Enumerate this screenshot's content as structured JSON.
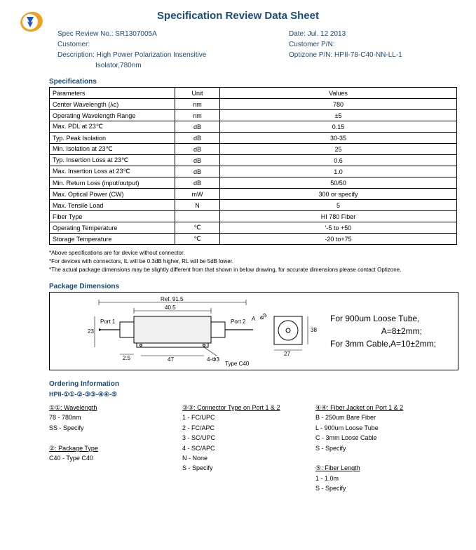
{
  "title": "Specification Review Data Sheet",
  "header": {
    "specReviewLabel": "Spec Review No.:",
    "specReviewNo": "SR1307005A",
    "dateLabel": "Date:",
    "date": "Jul. 12 2013",
    "customerLabel": "Customer:",
    "customer": "",
    "custPNLabel": "Customer P/N:",
    "custPN": "",
    "descLabel": "Description:",
    "desc1": "High Power Polarization Insensitive",
    "desc2": "Isolator,780nm",
    "optizonePNLabel": "Optizone P/N:",
    "optizonePN": "HPII-78-C40-NN-LL-1"
  },
  "specsHead": "Specifications",
  "specCols": {
    "param": "Parameters",
    "unit": "Unit",
    "values": "Values"
  },
  "specs": [
    {
      "p": "Center Wavelength (λc)",
      "u": "nm",
      "v": "780"
    },
    {
      "p": "Operating Wavelength Range",
      "u": "nm",
      "v": "±5"
    },
    {
      "p": "Max. PDL at 23℃",
      "u": "dB",
      "v": "0.15"
    },
    {
      "p": "Typ. Peak Isolation",
      "u": "dB",
      "v": "30-35"
    },
    {
      "p": "Min. Isolation at 23℃",
      "u": "dB",
      "v": "25"
    },
    {
      "p": "Typ. Insertion Loss at 23℃",
      "u": "dB",
      "v": "0.6"
    },
    {
      "p": "Max. Insertion Loss at 23℃",
      "u": "dB",
      "v": "1.0"
    },
    {
      "p": "Min. Return Loss (input/output)",
      "u": "dB",
      "v": "50/50"
    },
    {
      "p": "Max. Optical Power (CW)",
      "u": "mW",
      "v": "300 or specify"
    },
    {
      "p": "Max. Tensile Load",
      "u": "N",
      "v": "5"
    },
    {
      "p": "Fiber Type",
      "u": "",
      "v": "HI 780 Fiber"
    },
    {
      "p": "Operating Temperature",
      "u": "℃",
      "v": "'-5 to +50"
    },
    {
      "p": "Storage Temperature",
      "u": "℃",
      "v": "-20 to+75"
    }
  ],
  "notes": [
    "*Above specifications are for device without connector.",
    "*For devices with connectors, IL will be 0.3dB higher, RL will be 5dB lower.",
    "*The actual package dimensions may be slightly different from that shown in below drawing, for accurate dimensions please contact Optizone."
  ],
  "pkgHead": "Package Dimensions",
  "pkg": {
    "ref": "Ref. 91.5",
    "body": "40.5",
    "port1": "Port 1",
    "port2": "Port 2",
    "h": "23",
    "left25": "2.5",
    "mid47": "47",
    "hole": "4-Φ3",
    "end38": "38",
    "endDia": "Φ3",
    "end27": "27",
    "typeC40": "Type C40",
    "right1": "For 900um Loose Tube,",
    "right2": "A=8±2mm;",
    "right3": "For 3mm Cable,A=10±2mm;"
  },
  "ordering": {
    "head": "Ordering Information",
    "code": "HPII-①①-②-③③-④④-⑤",
    "cols": [
      {
        "title": "①①: Wavelength",
        "items": [
          "78 - 780nm",
          "SS - Specify",
          "",
          "②: Package Type",
          "C40 - Type C40"
        ]
      },
      {
        "title": "③③: Connector Type on Port 1 & 2",
        "items": [
          "1 - FC/UPC",
          "2 - FC/APC",
          "3 - SC/UPC",
          "4 - SC/APC",
          "N - None",
          "S - Specify"
        ]
      },
      {
        "title": "④④: Fiber Jacket on Port 1 & 2",
        "items": [
          "B - 250um Bare Fiber",
          "L - 900um Loose Tube",
          "C - 3mm Loose Cable",
          "S - Specify",
          "",
          "⑤: Fiber Length",
          "1 - 1.0m",
          "S - Specify"
        ]
      }
    ]
  },
  "styling": {
    "titleColor": "#1a4a7a",
    "logoColors": {
      "outer": "#f0a020",
      "inner": "#2050c0"
    }
  }
}
